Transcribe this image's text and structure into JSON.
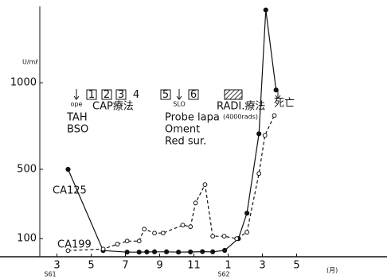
{
  "chart_data": {
    "type": "line",
    "ylabel": "U/mℓ",
    "xlim": [
      2,
      22.28
    ],
    "ylim": [
      0,
      1450
    ],
    "xticks": [
      3,
      5,
      7,
      9,
      11,
      {
        "value": 13,
        "label": "1"
      },
      {
        "value": 15,
        "label": "3"
      },
      {
        "value": 17,
        "label": "5"
      }
    ],
    "yticks": [
      100,
      500,
      1000
    ],
    "era_labels": [
      "S61",
      "S62"
    ],
    "x_unit": "(月)",
    "grid": false,
    "series": [
      {
        "name": "CA125",
        "color": "#111111",
        "dashed": false,
        "marker": "filled",
        "x": [
          3.65,
          5.7,
          7.1,
          7.8,
          8.25,
          8.7,
          9.4,
          10.1,
          10.8,
          11.5,
          12.1,
          12.8,
          13.6,
          14.1,
          14.8,
          15.2,
          15.8
        ],
        "values": [
          500,
          31,
          22,
          22,
          23,
          24,
          24,
          22,
          23,
          25,
          24,
          32,
          100,
          247,
          705,
          1420,
          958
        ]
      },
      {
        "name": "CA199",
        "color": "#111111",
        "dashed": true,
        "marker": "open",
        "x": [
          3.65,
          5.7,
          6.53,
          7.1,
          7.8,
          8.1,
          8.7,
          9.2,
          10.35,
          10.8,
          11.1,
          11.65,
          12.1,
          12.77,
          13.5,
          14.1,
          14.8,
          15.15,
          15.7
        ],
        "values": [
          31,
          40,
          68,
          86,
          86,
          155,
          132,
          132,
          178,
          169,
          306,
          412,
          114,
          114,
          100,
          137,
          476,
          696,
          811
        ]
      }
    ],
    "annotations": [
      "ope",
      "TAH",
      "BSO",
      "1",
      "2",
      "3",
      "4",
      "CAP療法",
      "5",
      "SLO",
      "6",
      "Probe lapa",
      "Oment",
      "Red sur.",
      "RADI.療法",
      "(4000rads)",
      "死亡"
    ]
  }
}
